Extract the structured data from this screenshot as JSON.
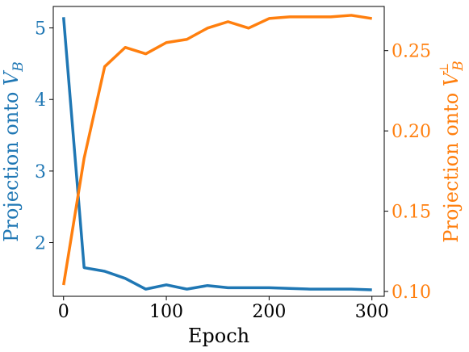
{
  "chart_data": {
    "type": "line",
    "title": "",
    "xlabel": "Epoch",
    "x": [
      0,
      20,
      40,
      60,
      80,
      100,
      120,
      140,
      160,
      180,
      200,
      220,
      240,
      260,
      280,
      300
    ],
    "xlim": [
      -10,
      312
    ],
    "xticks": [
      "0",
      "100",
      "200",
      "300"
    ],
    "grid": false,
    "legend": "none",
    "series": [
      {
        "name": "",
        "axis": "left",
        "color": "#1f77b4",
        "ylabel": "Projection onto V_B",
        "ylim": [
          1.25,
          5.3
        ],
        "yticks": [
          "2",
          "3",
          "4",
          "5"
        ],
        "values": [
          5.15,
          1.65,
          1.6,
          1.5,
          1.35,
          1.41,
          1.35,
          1.4,
          1.37,
          1.37,
          1.37,
          1.36,
          1.35,
          1.35,
          1.35,
          1.34
        ]
      },
      {
        "name": "",
        "axis": "right",
        "color": "#ff7f0e",
        "ylabel": "Projection onto V_B^⊥",
        "ylim": [
          0.097,
          0.2775
        ],
        "yticks": [
          "0.10",
          "0.15",
          "0.20",
          "0.25"
        ],
        "values": [
          0.104,
          0.183,
          0.24,
          0.252,
          0.248,
          0.255,
          0.257,
          0.264,
          0.268,
          0.264,
          0.27,
          0.271,
          0.271,
          0.271,
          0.272,
          0.27
        ]
      }
    ]
  }
}
